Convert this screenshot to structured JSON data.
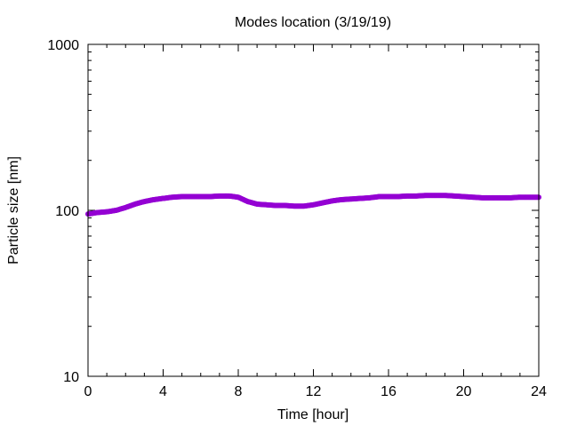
{
  "chart_data": {
    "type": "scatter",
    "title": "Modes location (3/19/19)",
    "xlabel": "Time [hour]",
    "ylabel": "Particle size [nm]",
    "xlim": [
      0,
      24
    ],
    "ylim": [
      10,
      1000
    ],
    "yscale": "log",
    "grid": false,
    "x_ticks": [
      "0",
      "4",
      "8",
      "12",
      "16",
      "20",
      "24"
    ],
    "x_tick_values": [
      0,
      4,
      8,
      12,
      16,
      20,
      24
    ],
    "y_ticks": [
      "10",
      "100",
      "1000"
    ],
    "y_tick_values": [
      10,
      100,
      1000
    ],
    "series": [
      {
        "color": "#9400d3",
        "x": [
          0,
          0.5,
          1,
          1.5,
          2,
          2.5,
          3,
          3.5,
          4,
          4.5,
          5,
          5.5,
          6,
          6.5,
          7,
          7.5,
          8,
          8.5,
          9,
          9.5,
          10,
          10.5,
          11,
          11.5,
          12,
          12.5,
          13,
          13.5,
          14,
          14.5,
          15,
          15.5,
          16,
          16.5,
          17,
          17.5,
          18,
          18.5,
          19,
          19.5,
          20,
          20.5,
          21,
          21.5,
          22,
          22.5,
          23,
          23.5,
          24
        ],
        "values": [
          95,
          97,
          98,
          100,
          104,
          109,
          113,
          116,
          118,
          120,
          121,
          121,
          121,
          121,
          122,
          122,
          120,
          113,
          109,
          108,
          107,
          107,
          106,
          106,
          108,
          111,
          114,
          116,
          117,
          118,
          119,
          121,
          121,
          121,
          122,
          122,
          123,
          123,
          123,
          122,
          121,
          120,
          119,
          119,
          119,
          119,
          120,
          120,
          120
        ]
      }
    ]
  }
}
